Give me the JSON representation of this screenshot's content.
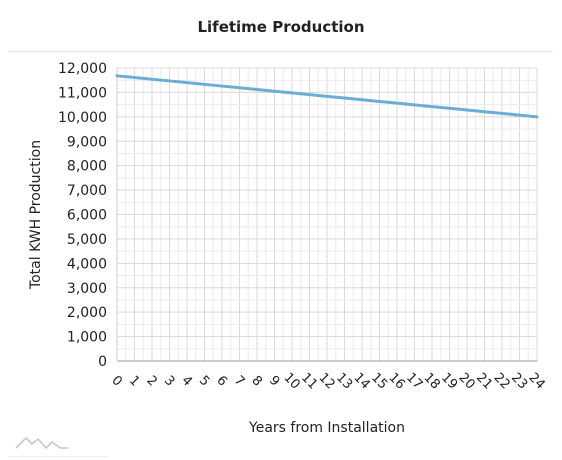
{
  "panel": {
    "title": "Lifetime Production",
    "logo_icon": "mountain-logo-icon"
  },
  "chart_data": {
    "type": "line",
    "title": "Lifetime Production",
    "xlabel": "Years from Installation",
    "ylabel": "Total KWH Production",
    "x": [
      0,
      1,
      2,
      3,
      4,
      5,
      6,
      7,
      8,
      9,
      10,
      11,
      12,
      13,
      14,
      15,
      16,
      17,
      18,
      19,
      20,
      21,
      22,
      23,
      24
    ],
    "x_tick_labels": [
      "0",
      "1",
      "2",
      "3",
      "4",
      "5",
      "6",
      "7",
      "8",
      "9",
      "10",
      "11",
      "12",
      "13",
      "14",
      "15",
      "16",
      "17",
      "18",
      "19",
      "20",
      "21",
      "22",
      "23",
      "24"
    ],
    "series": [
      {
        "color": "#6aaed6",
        "values": [
          11680,
          11610,
          11540,
          11470,
          11400,
          11330,
          11260,
          11190,
          11120,
          11050,
          10980,
          10910,
          10840,
          10770,
          10700,
          10630,
          10560,
          10490,
          10420,
          10350,
          10280,
          10210,
          10140,
          10070,
          10000
        ]
      }
    ],
    "ylim": [
      0,
      12000
    ],
    "y_ticks": [
      0,
      1000,
      2000,
      3000,
      4000,
      5000,
      6000,
      7000,
      8000,
      9000,
      10000,
      11000,
      12000
    ],
    "y_tick_labels": [
      "0",
      "1,000",
      "2,000",
      "3,000",
      "4,000",
      "5,000",
      "6,000",
      "7,000",
      "8,000",
      "9,000",
      "10,000",
      "11,000",
      "12,000"
    ],
    "grid": true,
    "legend": "none"
  }
}
